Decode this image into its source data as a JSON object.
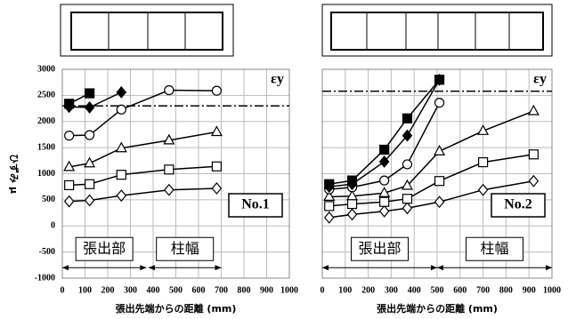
{
  "chart_data": [
    {
      "type": "line",
      "ylabel": "ひずみ μ",
      "xlabel": "張出先端からの距離 (mm)",
      "panel_label": "No.1",
      "x": [
        30,
        120,
        260,
        470,
        680
      ],
      "series": [
        {
          "marker": "diamond",
          "filled": false,
          "color": "#000000",
          "values": [
            470,
            490,
            580,
            690,
            720
          ]
        },
        {
          "marker": "square",
          "filled": false,
          "color": "#000000",
          "values": [
            780,
            800,
            980,
            1080,
            1140
          ]
        },
        {
          "marker": "triangle",
          "filled": false,
          "color": "#000000",
          "values": [
            1130,
            1200,
            1490,
            1640,
            1800
          ]
        },
        {
          "marker": "circle",
          "filled": false,
          "color": "#000000",
          "values": [
            1730,
            1740,
            2230,
            2600,
            2590
          ]
        },
        {
          "marker": "diamond",
          "filled": true,
          "color": "#000000",
          "values": [
            2280,
            2270,
            2560,
            null,
            null
          ]
        },
        {
          "marker": "square",
          "filled": true,
          "color": "#000000",
          "values": [
            2340,
            2540,
            null,
            null,
            null
          ]
        }
      ],
      "threshold": {
        "label": "εy",
        "value": 2300
      },
      "spans": [
        {
          "text": "張出部",
          "from": 0,
          "to": 370,
          "y": -800
        },
        {
          "text": "柱幅",
          "from": 380,
          "to": 700,
          "y": -800
        }
      ],
      "xlim": [
        0,
        1000
      ],
      "xticks": [
        0,
        100,
        200,
        300,
        400,
        500,
        600,
        700,
        800,
        900,
        1000
      ],
      "ylim": [
        -1000,
        3000
      ],
      "yticks": [
        -1000,
        -500,
        0,
        500,
        1000,
        1500,
        2000,
        2500,
        3000
      ],
      "show_ytick_labels": true,
      "grid": true
    },
    {
      "type": "line",
      "xlabel": "張出先端からの距離 (mm)",
      "panel_label": "No.2",
      "x": [
        30,
        130,
        270,
        370,
        510,
        700,
        920
      ],
      "series": [
        {
          "marker": "diamond",
          "filled": false,
          "color": "#000000",
          "values": [
            160,
            220,
            280,
            340,
            460,
            690,
            860
          ]
        },
        {
          "marker": "square",
          "filled": false,
          "color": "#000000",
          "values": [
            380,
            420,
            460,
            520,
            860,
            1220,
            1370
          ]
        },
        {
          "marker": "triangle",
          "filled": false,
          "color": "#000000",
          "values": [
            560,
            570,
            630,
            770,
            1430,
            1820,
            2200
          ]
        },
        {
          "marker": "circle",
          "filled": false,
          "color": "#000000",
          "values": [
            700,
            740,
            870,
            1180,
            2360,
            null,
            null
          ]
        },
        {
          "marker": "diamond",
          "filled": true,
          "color": "#000000",
          "values": [
            750,
            800,
            1230,
            1730,
            2800,
            null,
            null
          ]
        },
        {
          "marker": "square",
          "filled": true,
          "color": "#000000",
          "values": [
            800,
            870,
            1460,
            2060,
            2800,
            null,
            null
          ]
        }
      ],
      "threshold": {
        "label": "εy",
        "value": 2580
      },
      "spans": [
        {
          "text": "張出部",
          "from": 0,
          "to": 500,
          "y": -800
        },
        {
          "text": "柱幅",
          "from": 500,
          "to": 1000,
          "y": -800
        }
      ],
      "xlim": [
        0,
        1000
      ],
      "xticks": [
        0,
        100,
        200,
        300,
        400,
        500,
        600,
        700,
        800,
        900,
        1000
      ],
      "ylim": [
        -1000,
        3000
      ],
      "yticks": [
        -1000,
        -500,
        0,
        500,
        1000,
        1500,
        2000,
        2500,
        3000
      ],
      "show_ytick_labels": false,
      "grid": true
    }
  ]
}
